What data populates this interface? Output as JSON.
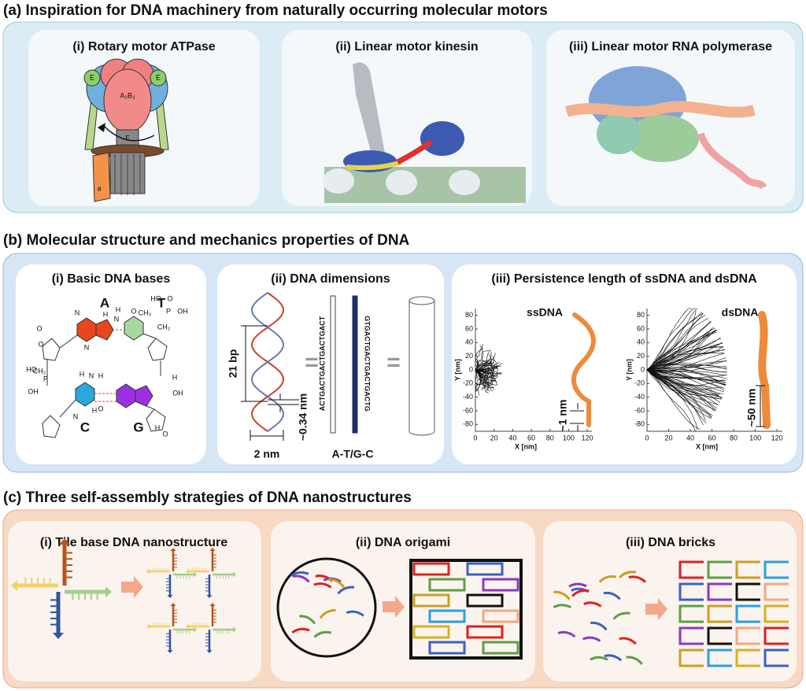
{
  "panels": [
    {
      "title": "(a) Inspiration for DNA machinery from naturally occurring molecular motors",
      "subpanels": [
        {
          "title": "(i) Rotary motor ATPase",
          "labels": [
            "E",
            "E",
            "A₃B₃",
            "F",
            "a"
          ]
        },
        {
          "title": "(ii) Linear motor kinesin"
        },
        {
          "title": "(iii) Linear motor RNA polymerase"
        }
      ]
    },
    {
      "title": "(b) Molecular structure and mechanics properties of DNA",
      "subpanels": [
        {
          "title": "(i) Basic DNA bases",
          "bases": [
            "A",
            "T",
            "C",
            "G"
          ],
          "atoms": [
            "O",
            "OH",
            "P",
            "HO",
            "CH₂",
            "H",
            "N",
            "H",
            "O",
            "CH₃",
            "N",
            "N",
            "O",
            "OH",
            "P",
            "HO",
            "CH₂",
            "H",
            "N",
            "H",
            "N",
            "H",
            "O",
            "OH",
            "H",
            "O",
            "H",
            "O"
          ]
        },
        {
          "title": "(ii) DNA dimensions",
          "labels": [
            "21 bp",
            "~0.34 nm",
            "2 nm",
            "=",
            "=",
            "A-T/G-C"
          ],
          "strands": [
            "ACTGACTGACTGACTGACT",
            "GTGACTGACTGACTGACTG"
          ]
        },
        {
          "title": "(iii) Persistence length of ssDNA and dsDNA",
          "plots": [
            {
              "name": "ssDNA",
              "scale_label": "~1 nm",
              "xlabel": "X [nm]",
              "ylabel": "Y [nm]",
              "xlim": [
                0,
                125
              ],
              "ylim": [
                -90,
                90
              ],
              "xticks": [
                0,
                20,
                40,
                60,
                80,
                100,
                120
              ],
              "yticks": [
                80,
                60,
                40,
                20,
                0,
                -20,
                -40,
                -60,
                -80
              ]
            },
            {
              "name": "dsDNA",
              "scale_label": "~50 nm",
              "xlabel": "X [nm]",
              "ylabel": "Y [nm]",
              "xlim": [
                0,
                125
              ],
              "ylim": [
                -90,
                90
              ],
              "xticks": [
                0,
                20,
                40,
                60,
                80,
                100,
                120
              ],
              "yticks": [
                80,
                60,
                40,
                20,
                0,
                -20,
                -40,
                -60,
                -80
              ]
            }
          ]
        }
      ]
    },
    {
      "title": "(c)  Three self-assembly strategies of DNA nanostructures",
      "subpanels": [
        {
          "title": "(i) Tile base DNA nanostructure"
        },
        {
          "title": "(ii) DNA origami"
        },
        {
          "title": "(iii) DNA bricks"
        }
      ]
    }
  ]
}
